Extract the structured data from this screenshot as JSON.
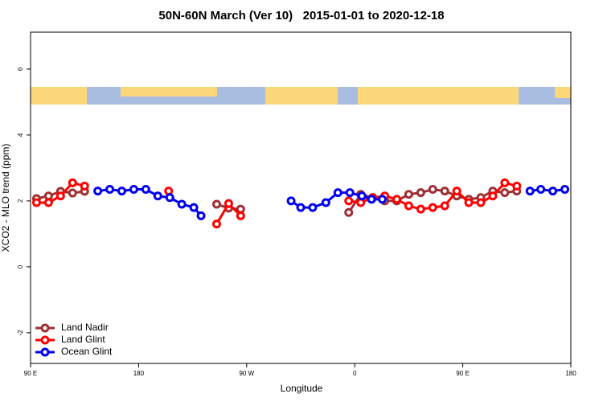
{
  "chart_data": {
    "type": "line",
    "title": "50N-60N March (Ver 10)   2015-01-01 to 2020-12-18",
    "x_label": "Longitude",
    "y_label": "XCO2 - MLO trend (ppm)",
    "xlim": [
      90,
      540
    ],
    "ylim": [
      -2.93,
      7.12
    ],
    "xticks": [
      {
        "value": 90,
        "label": "90 E"
      },
      180,
      {
        "value": 270,
        "label": "90 W"
      },
      {
        "value": 360,
        "label": "0"
      },
      {
        "value": 450,
        "label": "90 E"
      },
      {
        "value": 540,
        "label": "180"
      }
    ],
    "yticks": [
      -2,
      0,
      2,
      4,
      6
    ],
    "legend": "bottom-left",
    "series": [
      {
        "name": "Land Nadir",
        "color": "#9e2f32",
        "x": [
          95,
          105,
          115,
          125,
          135,
          null,
          245,
          255,
          265,
          null,
          355,
          365,
          375,
          385,
          395,
          405,
          415,
          425,
          435,
          445,
          455,
          465,
          475,
          485,
          495
        ],
        "values": [
          2.07,
          2.15,
          2.29,
          2.24,
          2.29,
          null,
          1.9,
          1.78,
          1.75,
          null,
          1.65,
          2.2,
          2.1,
          2.0,
          2.0,
          2.2,
          2.25,
          2.35,
          2.3,
          2.15,
          2.05,
          2.1,
          2.3,
          2.25,
          2.3
        ]
      },
      {
        "name": "Land Glint",
        "color": "#ff0000",
        "x": [
          95,
          105,
          115,
          125,
          135,
          null,
          205,
          null,
          245,
          255,
          265,
          null,
          355,
          365,
          375,
          385,
          395,
          405,
          415,
          425,
          435,
          445,
          455,
          465,
          475,
          485,
          495
        ],
        "values": [
          1.95,
          1.95,
          2.15,
          2.55,
          2.45,
          null,
          2.3,
          null,
          1.3,
          1.92,
          1.55,
          null,
          2.0,
          1.95,
          2.1,
          2.15,
          2.05,
          1.85,
          1.75,
          1.8,
          1.85,
          2.3,
          1.95,
          1.95,
          2.15,
          2.55,
          2.45
        ]
      },
      {
        "name": "Ocean Glint",
        "color": "#0000ee",
        "x": [
          146,
          156,
          166,
          176,
          186,
          196,
          206,
          216,
          226,
          232,
          null,
          307,
          315,
          325,
          336,
          346,
          356,
          366,
          374,
          383,
          null,
          506,
          515,
          525,
          535
        ],
        "values": [
          2.3,
          2.35,
          2.3,
          2.35,
          2.35,
          2.15,
          2.1,
          1.9,
          1.8,
          1.55,
          null,
          2.0,
          1.8,
          1.8,
          1.95,
          2.25,
          2.25,
          2.15,
          2.05,
          2.05,
          null,
          2.3,
          2.35,
          2.3,
          2.35
        ]
      }
    ]
  }
}
